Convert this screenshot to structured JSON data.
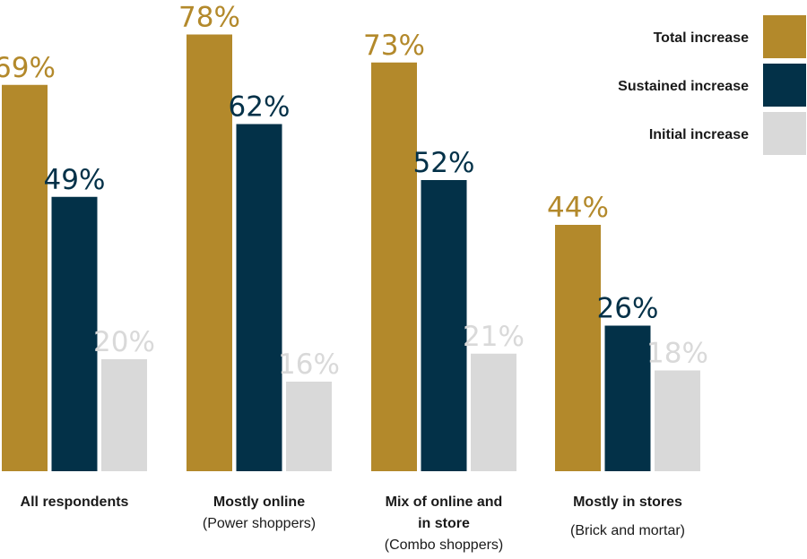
{
  "chart_data": {
    "type": "bar",
    "categories": [
      [
        "All respondents"
      ],
      [
        "Mostly online",
        "(Power shoppers)"
      ],
      [
        "Mix of online and",
        "in store",
        "(Combo shoppers)"
      ],
      [
        "Mostly in stores",
        "(Brick and mortar)"
      ]
    ],
    "series": [
      {
        "name": "Total increase",
        "values": [
          69,
          78,
          73,
          44
        ],
        "color": "#b3892b"
      },
      {
        "name": "Sustained increase",
        "values": [
          49,
          62,
          52,
          26
        ],
        "color": "#033148"
      },
      {
        "name": "Initial increase",
        "values": [
          20,
          16,
          21,
          18
        ],
        "color": "#d9d9d9"
      }
    ],
    "value_suffix": "%",
    "ylim": [
      0,
      100
    ],
    "grid": false,
    "legend_position": "top-right",
    "title": "",
    "xlabel": "",
    "ylabel": ""
  }
}
